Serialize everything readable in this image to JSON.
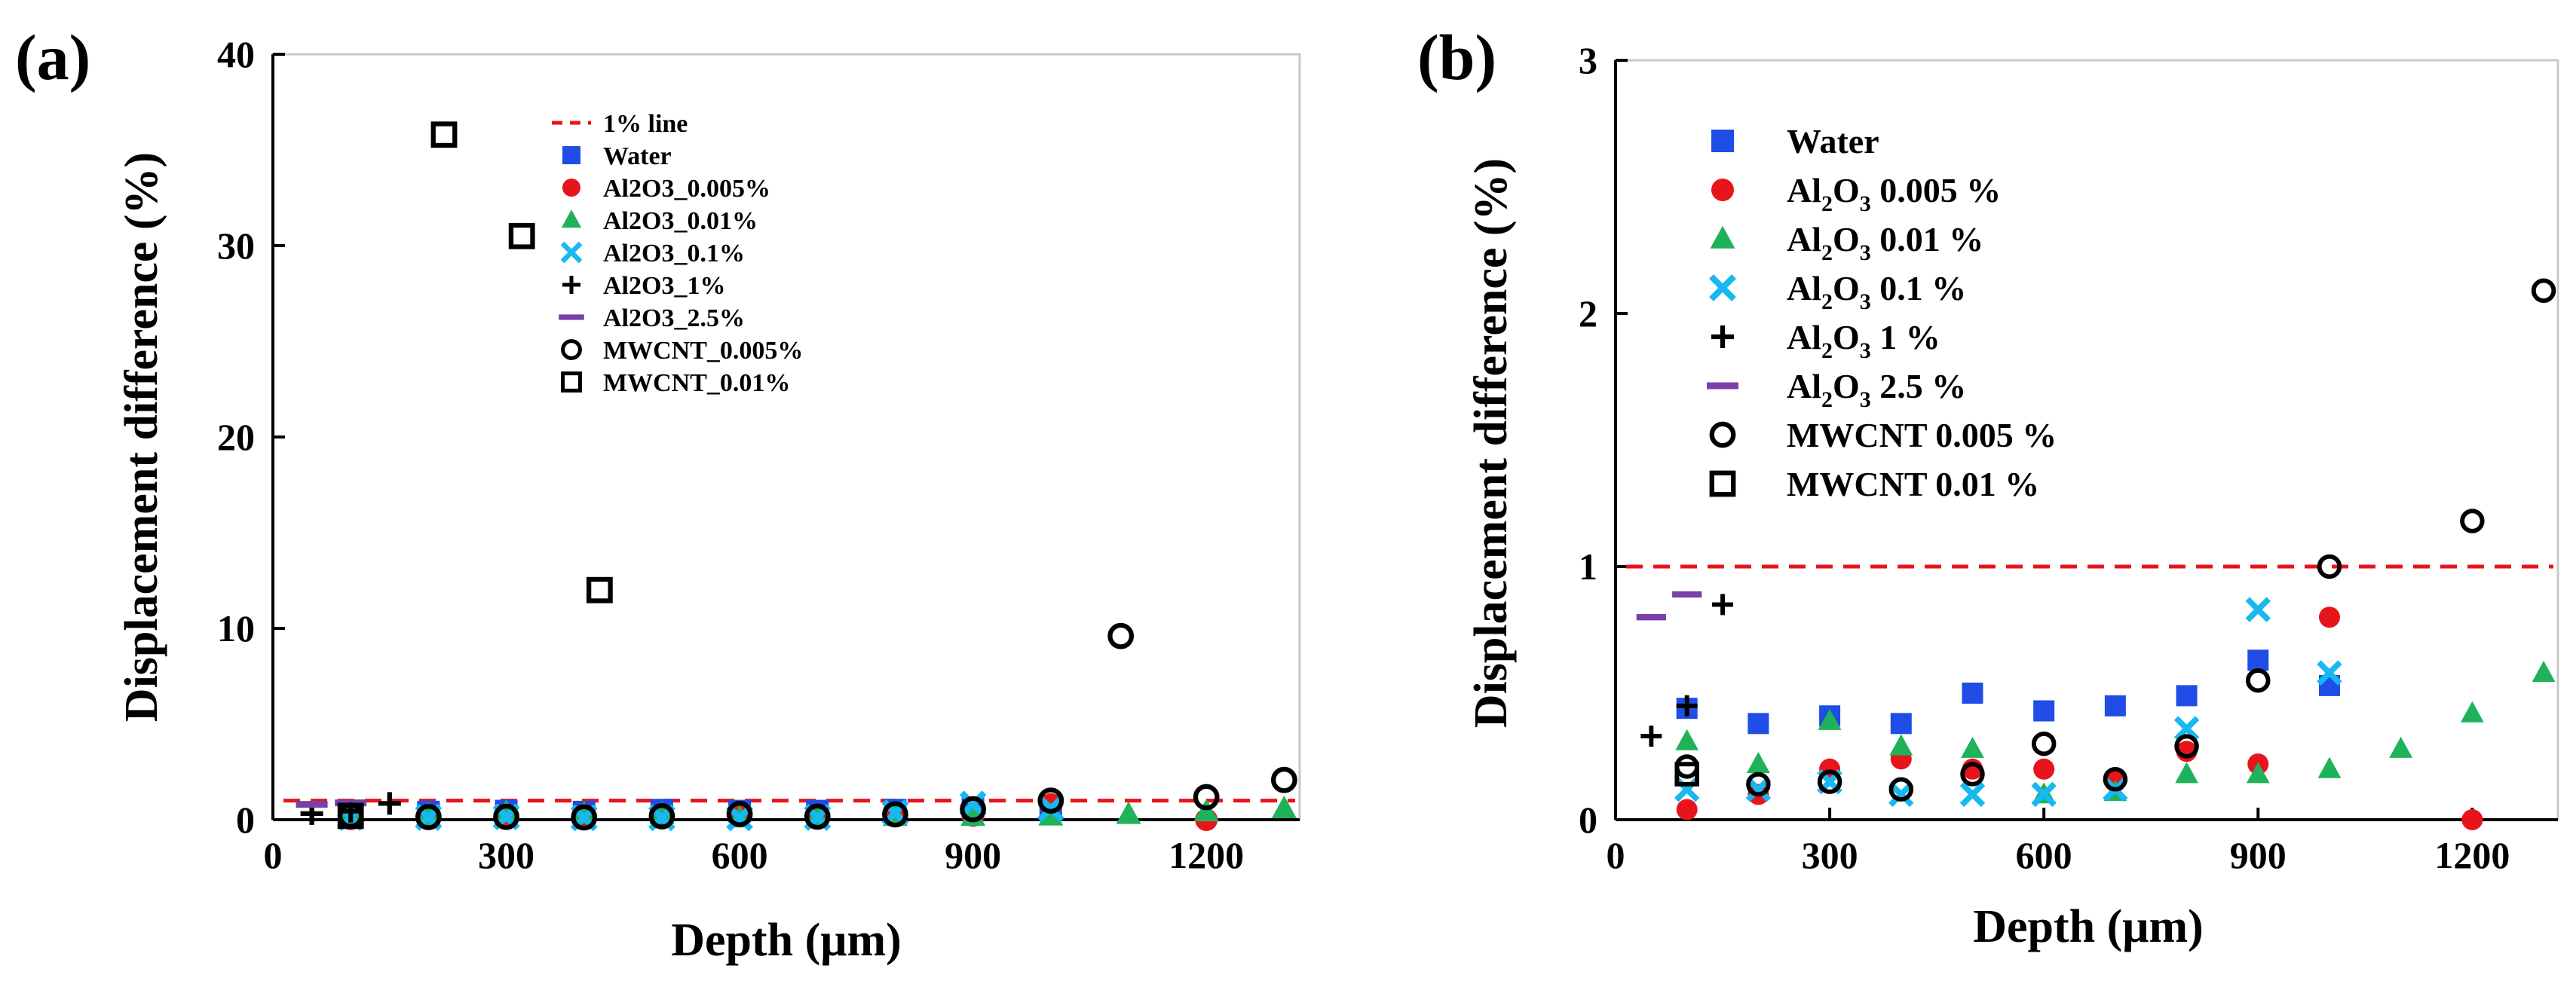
{
  "colors": {
    "water": "#1f4de6",
    "al2o3_0005": "#e8141c",
    "al2o3_001": "#1fb25a",
    "al2o3_01": "#18b8f0",
    "al2o3_1": "#000000",
    "al2o3_25": "#7a3fa8",
    "mwcnt": "#000000",
    "refline": "#e8141c"
  },
  "chart_data": [
    {
      "type": "scatter",
      "panel_label": "(a)",
      "xlabel": "Depth (μm)",
      "ylabel": "Displacement difference (%)",
      "xlim": [
        0,
        1320
      ],
      "ylim": [
        0,
        40
      ],
      "x_ticks": [
        "0",
        "300",
        "600",
        "900",
        "1200"
      ],
      "x_tick_values": [
        0,
        300,
        600,
        900,
        1200
      ],
      "y_ticks": [
        "0",
        "10",
        "20",
        "30",
        "40"
      ],
      "y_tick_values": [
        0,
        10,
        20,
        30,
        40
      ],
      "legend": [
        {
          "key": "line",
          "label": "1% line"
        },
        {
          "key": "water",
          "label": "Water"
        },
        {
          "key": "al2o3_0005",
          "label": "Al2O3_0.005%"
        },
        {
          "key": "al2o3_001",
          "label": "Al2O3_0.01%"
        },
        {
          "key": "al2o3_01",
          "label": "Al2O3_0.1%"
        },
        {
          "key": "al2o3_1",
          "label": "Al2O3_1%"
        },
        {
          "key": "al2o3_25",
          "label": "Al2O3_2.5%"
        },
        {
          "key": "mwcnt_0005",
          "label": "MWCNT_0.005%"
        },
        {
          "key": "mwcnt_001",
          "label": "MWCNT_0.01%"
        }
      ],
      "reference_line": {
        "label": "1% line",
        "y": 1
      },
      "series": [
        {
          "key": "water",
          "name": "Water",
          "marker": "square",
          "x": [
            100,
            200,
            300,
            400,
            500,
            600,
            700,
            800,
            900,
            1000
          ],
          "y": [
            0.4,
            0.4,
            0.45,
            0.4,
            0.5,
            0.45,
            0.45,
            0.5,
            0.6,
            0.55
          ]
        },
        {
          "key": "al2o3_0005",
          "name": "Al2O3_0.005%",
          "marker": "circle",
          "x": [
            100,
            200,
            300,
            400,
            500,
            600,
            700,
            800,
            900,
            1000,
            1200
          ],
          "y": [
            0.05,
            0.1,
            0.2,
            0.25,
            0.2,
            0.2,
            0.15,
            0.3,
            0.22,
            0.8,
            0.0
          ]
        },
        {
          "key": "al2o3_001",
          "name": "Al2O3_0.01%",
          "marker": "triangle",
          "x": [
            100,
            200,
            300,
            400,
            500,
            600,
            700,
            800,
            900,
            1000,
            1100,
            1200,
            1300
          ],
          "y": [
            0.3,
            0.22,
            0.4,
            0.3,
            0.28,
            0.1,
            0.1,
            0.18,
            0.18,
            0.2,
            0.28,
            0.42,
            0.58
          ]
        },
        {
          "key": "al2o3_01",
          "name": "Al2O3_0.1%",
          "marker": "x",
          "x": [
            100,
            200,
            300,
            400,
            500,
            600,
            700,
            800,
            900,
            1000
          ],
          "y": [
            0.12,
            0.12,
            0.15,
            0.1,
            0.1,
            0.1,
            0.12,
            0.36,
            0.82,
            0.58
          ]
        },
        {
          "key": "al2o3_1",
          "name": "Al2O3_1%",
          "marker": "plus",
          "x": [
            50,
            100,
            150
          ],
          "y": [
            0.32,
            0.45,
            0.85
          ]
        },
        {
          "key": "al2o3_25",
          "name": "Al2O3_2.5%",
          "marker": "dash",
          "x": [
            50,
            100
          ],
          "y": [
            0.8,
            0.88
          ]
        },
        {
          "key": "mwcnt_0005",
          "name": "MWCNT_0.005%",
          "marker": "open-circle",
          "x": [
            100,
            200,
            300,
            400,
            500,
            600,
            700,
            800,
            900,
            1000,
            1090,
            1200,
            1300
          ],
          "y": [
            0.22,
            0.14,
            0.15,
            0.12,
            0.18,
            0.3,
            0.16,
            0.28,
            0.55,
            1.0,
            9.6,
            1.18,
            2.08
          ]
        },
        {
          "key": "mwcnt_001",
          "name": "MWCNT_0.01%",
          "marker": "open-square",
          "x": [
            100,
            220,
            320,
            420
          ],
          "y": [
            0.2,
            35.8,
            30.5,
            12.0
          ]
        }
      ]
    },
    {
      "type": "scatter",
      "panel_label": "(b)",
      "xlabel": "Depth (μm)",
      "ylabel": "Displacement difference (%)",
      "xlim": [
        0,
        1320
      ],
      "ylim": [
        0,
        3
      ],
      "x_ticks": [
        "0",
        "300",
        "600",
        "900",
        "1200"
      ],
      "x_tick_values": [
        0,
        300,
        600,
        900,
        1200
      ],
      "y_ticks": [
        "0",
        "1",
        "2",
        "3"
      ],
      "y_tick_values": [
        0,
        1,
        2,
        3
      ],
      "legend": [
        {
          "key": "water",
          "label": "Water",
          "pre": "",
          "sub": "",
          "post": ""
        },
        {
          "key": "al2o3_0005",
          "label": "Al2O3 0.005 %",
          "pre": "Al",
          "sub": "2",
          "mid": "O",
          "sub2": "3",
          "post": "  0.005 %"
        },
        {
          "key": "al2o3_001",
          "label": "Al2O3 0.01 %",
          "pre": "Al",
          "sub": "2",
          "mid": "O",
          "sub2": "3",
          "post": "  0.01 %"
        },
        {
          "key": "al2o3_01",
          "label": "Al2O3 0.1 %",
          "pre": "Al",
          "sub": "2",
          "mid": "O",
          "sub2": "3",
          "post": "  0.1 %"
        },
        {
          "key": "al2o3_1",
          "label": "Al2O3 1 %",
          "pre": "Al",
          "sub": "2",
          "mid": "O",
          "sub2": "3",
          "post": "  1 %"
        },
        {
          "key": "al2o3_25",
          "label": "Al2O3 2.5 %",
          "pre": "Al",
          "sub": "2",
          "mid": "O",
          "sub2": "3",
          "post": "  2.5 %"
        },
        {
          "key": "mwcnt_0005",
          "label": "MWCNT  0.005 %",
          "pre": "",
          "sub": "",
          "post": ""
        },
        {
          "key": "mwcnt_001",
          "label": "MWCNT  0.01 %",
          "pre": "",
          "sub": "",
          "post": ""
        }
      ],
      "reference_line": {
        "y": 1
      },
      "series": [
        {
          "key": "water",
          "name": "Water",
          "marker": "square",
          "x": [
            100,
            200,
            300,
            400,
            500,
            600,
            700,
            800,
            900,
            1000
          ],
          "y": [
            0.44,
            0.38,
            0.41,
            0.38,
            0.5,
            0.43,
            0.45,
            0.49,
            0.63,
            0.53
          ]
        },
        {
          "key": "al2o3_0005",
          "name": "Al2O3 0.005 %",
          "marker": "circle",
          "x": [
            100,
            200,
            300,
            400,
            500,
            600,
            700,
            800,
            900,
            1000,
            1200
          ],
          "y": [
            0.04,
            0.1,
            0.2,
            0.24,
            0.2,
            0.2,
            0.15,
            0.27,
            0.22,
            0.8,
            0.0
          ]
        },
        {
          "key": "al2o3_001",
          "name": "Al2O3 0.01 %",
          "marker": "triangle",
          "x": [
            100,
            200,
            300,
            400,
            500,
            600,
            700,
            800,
            900,
            1000,
            1100,
            1200,
            1300
          ],
          "y": [
            0.31,
            0.22,
            0.39,
            0.29,
            0.28,
            0.1,
            0.11,
            0.18,
            0.18,
            0.2,
            0.28,
            0.42,
            0.58
          ]
        },
        {
          "key": "al2o3_01",
          "name": "Al2O3 0.1 %",
          "marker": "x",
          "x": [
            100,
            200,
            300,
            400,
            500,
            600,
            700,
            800,
            900,
            1000
          ],
          "y": [
            0.12,
            0.12,
            0.15,
            0.1,
            0.1,
            0.1,
            0.12,
            0.36,
            0.83,
            0.58
          ]
        },
        {
          "key": "al2o3_1",
          "name": "Al2O3 1 %",
          "marker": "plus",
          "x": [
            50,
            100,
            150
          ],
          "y": [
            0.33,
            0.45,
            0.85
          ]
        },
        {
          "key": "al2o3_25",
          "name": "Al2O3 2.5 %",
          "marker": "dash",
          "x": [
            50,
            100
          ],
          "y": [
            0.8,
            0.89
          ]
        },
        {
          "key": "mwcnt_0005",
          "name": "MWCNT 0.005 %",
          "marker": "open-circle",
          "x": [
            100,
            200,
            300,
            400,
            500,
            600,
            700,
            800,
            900,
            1000,
            1200,
            1300
          ],
          "y": [
            0.21,
            0.14,
            0.15,
            0.12,
            0.18,
            0.3,
            0.16,
            0.29,
            0.55,
            1.0,
            1.18,
            2.09
          ]
        },
        {
          "key": "mwcnt_001",
          "name": "MWCNT 0.01 %",
          "marker": "open-square",
          "x": [
            100
          ],
          "y": [
            0.18
          ]
        }
      ]
    }
  ]
}
